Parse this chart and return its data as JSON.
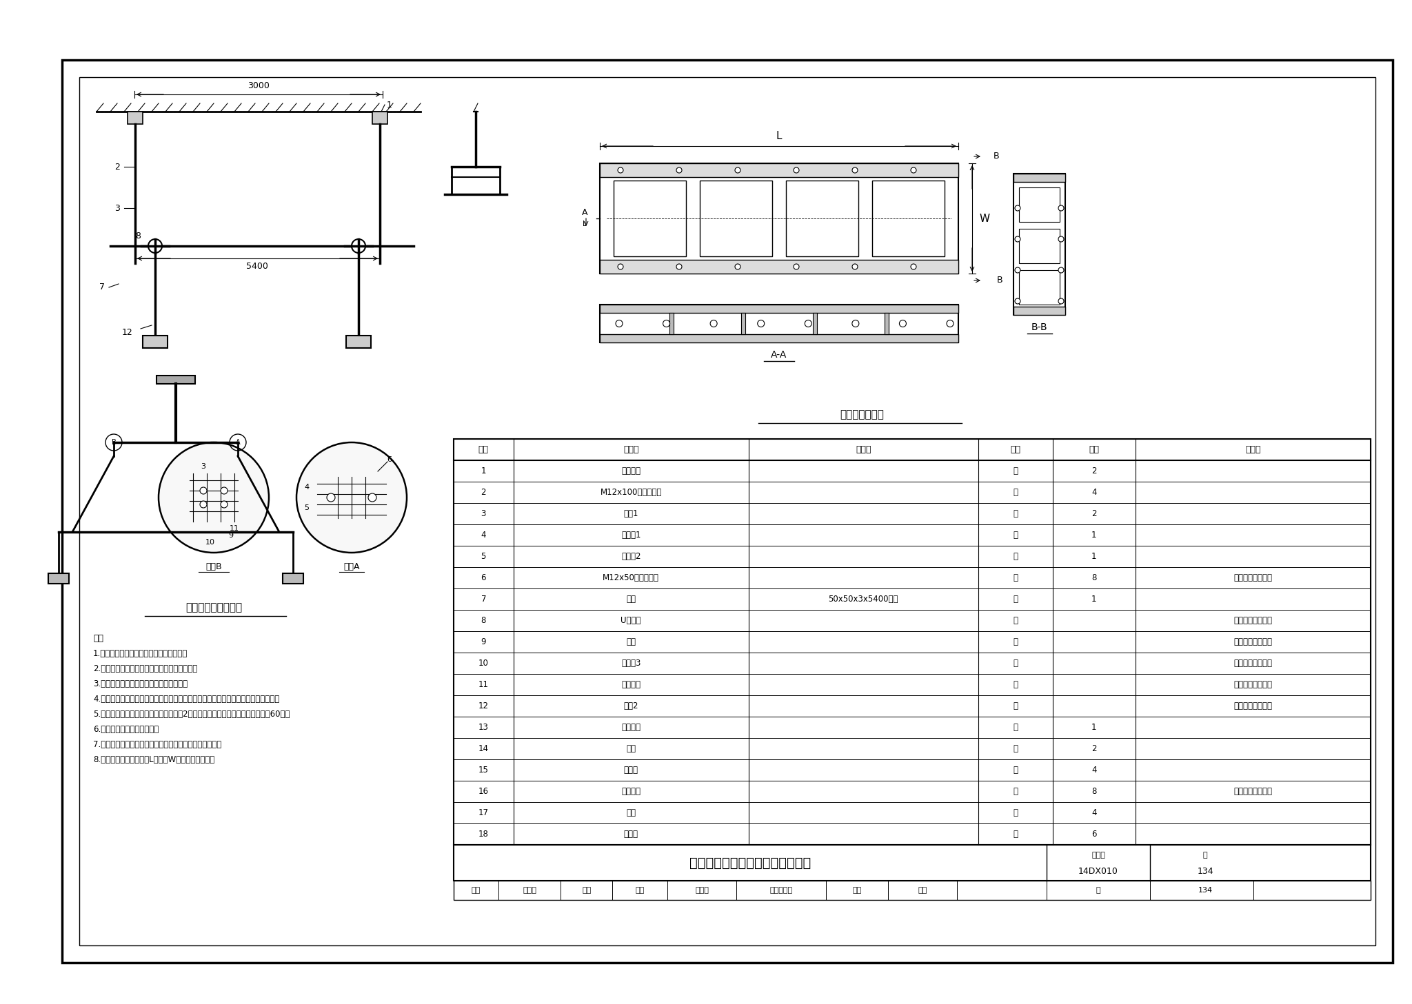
{
  "bg_color": "#ffffff",
  "table_title": "顶棚向导吊装结构图及总装图举例",
  "drawing_number": "14DX010",
  "page_number": "134",
  "diagram1_title": "顶棚向导吊装结构图",
  "diagram2_title": "顶棚向导总装图",
  "section_aa": "A-A",
  "section_bb": "B-B",
  "detail_a": "细节A",
  "detail_b": "细节B",
  "dim_3000": "3000",
  "dim_5400": "5400",
  "notes_title": "注：",
  "notes": [
    "1.面板与中间支架之间通过合页进行连接。",
    "2.底座与安装支架之间通过焊接方式进行连接。",
    "3.玻璃压条通过螺栓与面板进行固定连接。",
    "4.安装件下带与底座之间通过螺栓进行连接，上带与中间支架通过销接方式进行连接。",
    "5.槽体内两侧需安装支撑杆，每个面板配2个支撑杆。要求面板打开角度可以达到60度。",
    "6.零件表面需进行情景处理。",
    "7.钢门挡槽钣金标准进行安装，保证面板合上后没有缝隙。",
    "8.顶棚向导总装图中长度L和宽度W见具体工程设计。"
  ],
  "table_headers": [
    "序号",
    "名　称",
    "材　料",
    "单位",
    "数量",
    "备　注"
  ],
  "table_rows": [
    [
      "1",
      "安装法兰",
      "",
      "套",
      "2",
      ""
    ],
    [
      "2",
      "M12x100高强度螺栓",
      "",
      "套",
      "4",
      ""
    ],
    [
      "3",
      "吊杆1",
      "",
      "套",
      "2",
      ""
    ],
    [
      "4",
      "连接件1",
      "",
      "套",
      "1",
      ""
    ],
    [
      "5",
      "连接件2",
      "",
      "套",
      "1",
      ""
    ],
    [
      "6",
      "M12x50高强度螺栓",
      "",
      "套",
      "8",
      "配螺母及平垫焊垫"
    ],
    [
      "7",
      "槽框",
      "50x50x3x5400钢管",
      "套",
      "1",
      ""
    ],
    [
      "8",
      "U型螺栓",
      "",
      "个",
      "",
      "具体工程设计确定"
    ],
    [
      "9",
      "滑槽",
      "",
      "个",
      "",
      "具体工程设计确定"
    ],
    [
      "10",
      "连接件3",
      "",
      "套",
      "",
      "具体工程设计确定"
    ],
    [
      "11",
      "固定法兰",
      "",
      "套",
      "",
      "具体工程设计确定"
    ],
    [
      "12",
      "吊杆2",
      "",
      "套",
      "",
      "具体工程设计确定"
    ],
    [
      "13",
      "中间支架",
      "",
      "套",
      "1",
      ""
    ],
    [
      "14",
      "面板",
      "",
      "套",
      "2",
      ""
    ],
    [
      "15",
      "安装件",
      "",
      "套",
      "4",
      ""
    ],
    [
      "16",
      "玻璃压条",
      "",
      "套",
      "8",
      "配螺母及平垫焊垫"
    ],
    [
      "17",
      "底座",
      "",
      "套",
      "4",
      ""
    ],
    [
      "18",
      "钢门挡",
      "",
      "套",
      "6",
      ""
    ]
  ],
  "footer_labels": [
    "审核",
    "王向东",
    "沈飞",
    "校对",
    "孙东山",
    "沈令心设计",
    "石墙",
    "签审",
    "页",
    "134"
  ],
  "outer_border": [
    90,
    60,
    1930,
    1310
  ],
  "inner_border": [
    115,
    85,
    1880,
    1260
  ]
}
